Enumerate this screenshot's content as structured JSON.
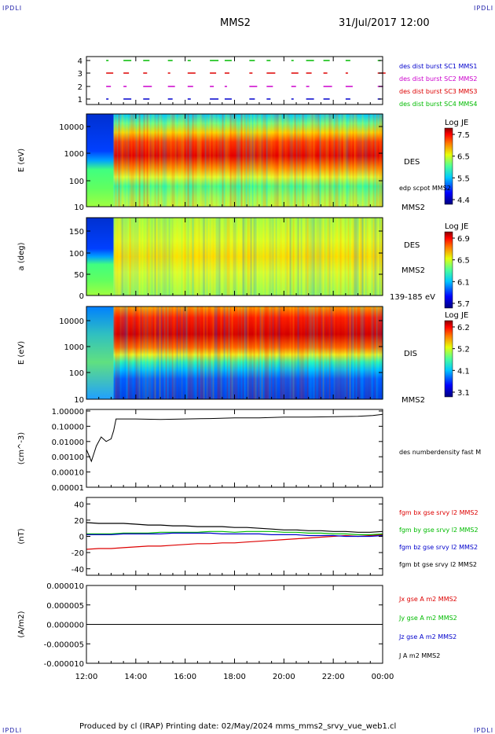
{
  "header": {
    "corner_tl": "IPDLI",
    "corner_tr": "IPDLI",
    "corner_bl": "IPDLI",
    "corner_br": "IPDLI",
    "spacecraft": "MMS2",
    "datetime": "31/Jul/2017 12:00"
  },
  "footer": {
    "text": "Produced by cl (IRAP)   Printing date: 02/May/2024   mms_mms2_srvy_vue_web1.cl"
  },
  "time_axis": {
    "ticks": [
      "12:00",
      "14:00",
      "16:00",
      "18:00",
      "20:00",
      "22:00",
      "00:00"
    ]
  },
  "colors": {
    "mms1": "#0000cc",
    "mms2": "#cc00cc",
    "mms3": "#dd0000",
    "mms4": "#00bb00",
    "bx": "#dd0000",
    "by": "#00bb00",
    "bz": "#0000cc",
    "bt": "#000000"
  },
  "chart_data": [
    {
      "type": "scatter",
      "panel": "burst",
      "yticks": [
        "1",
        "2",
        "3",
        "4"
      ],
      "legend": [
        "des dist burst SC1 MMS1",
        "des dist burst SC2 MMS2",
        "des dist burst SC3 MMS3",
        "des dist burst SC4 MMS4"
      ],
      "burst_hours": [
        12.8,
        13.5,
        14.3,
        15.3,
        16.1,
        17.0,
        17.6,
        18.6,
        19.3,
        20.3,
        20.9,
        21.6,
        22.5,
        23.8
      ]
    },
    {
      "type": "heatmap",
      "panel": "des-energy",
      "ylabel": "E (eV)",
      "yticks": [
        "10000",
        "1000",
        "100",
        "10"
      ],
      "right_labels": [
        "DES",
        "edp scpot MMS2",
        "MMS2"
      ],
      "colorbar": {
        "title": "Log JE",
        "ticks": [
          "7.5",
          "6.5",
          "5.5",
          "4.4"
        ]
      }
    },
    {
      "type": "heatmap",
      "panel": "des-pitch",
      "ylabel": "a (deg)",
      "yticks": [
        "150",
        "100",
        "50",
        "0"
      ],
      "right_labels": [
        "DES",
        "MMS2",
        "139-185 eV"
      ],
      "colorbar": {
        "title": "Log JE",
        "ticks": [
          "6.9",
          "6.5",
          "6.1",
          "5.7"
        ]
      }
    },
    {
      "type": "heatmap",
      "panel": "dis-energy",
      "ylabel": "E (eV)",
      "yticks": [
        "10000",
        "1000",
        "100",
        "10"
      ],
      "right_labels": [
        "DIS",
        "MMS2"
      ],
      "colorbar": {
        "title": "Log JE",
        "ticks": [
          "6.2",
          "5.2",
          "4.1",
          "3.1"
        ]
      }
    },
    {
      "type": "line",
      "panel": "density",
      "ylabel": "(cm^-3)",
      "yticks": [
        "1.00000",
        "0.10000",
        "0.01000",
        "0.00100",
        "0.00010",
        "0.00001"
      ],
      "legend": [
        "des numberdensity fast M"
      ],
      "x_hours": [
        12.0,
        12.2,
        12.4,
        12.6,
        12.8,
        13.0,
        13.1,
        13.2,
        14.0,
        15.0,
        16.0,
        17.0,
        18.0,
        19.0,
        20.0,
        21.0,
        22.0,
        23.0,
        23.6,
        24.0
      ],
      "values": [
        0.003,
        0.0005,
        0.005,
        0.02,
        0.01,
        0.015,
        0.05,
        0.3,
        0.3,
        0.28,
        0.3,
        0.32,
        0.35,
        0.35,
        0.4,
        0.4,
        0.42,
        0.45,
        0.5,
        0.6
      ]
    },
    {
      "type": "line",
      "panel": "magnetic-field",
      "ylabel": "(nT)",
      "yticks": [
        "40",
        "20",
        "0",
        "-20",
        "-40"
      ],
      "ylim": [
        -48,
        48
      ],
      "x_hours": [
        12.0,
        12.5,
        13.0,
        13.5,
        14.0,
        14.5,
        15.0,
        15.5,
        16.0,
        16.5,
        17.0,
        17.5,
        18.0,
        18.5,
        19.0,
        19.5,
        20.0,
        20.5,
        21.0,
        21.5,
        22.0,
        22.5,
        23.0,
        23.5,
        24.0
      ],
      "series": [
        {
          "name": "fgm bx gse srvy l2 MMS2",
          "values": [
            -16,
            -15,
            -15,
            -14,
            -13,
            -12,
            -12,
            -11,
            -10,
            -9,
            -9,
            -8,
            -8,
            -7,
            -6,
            -5,
            -4,
            -3,
            -2,
            -1,
            0,
            1,
            0,
            1,
            2
          ]
        },
        {
          "name": "fgm by gse srvy l2 MMS2",
          "values": [
            3,
            3,
            3,
            4,
            4,
            4,
            5,
            5,
            5,
            5,
            6,
            6,
            5,
            6,
            6,
            6,
            5,
            5,
            4,
            4,
            3,
            3,
            2,
            2,
            3
          ]
        },
        {
          "name": "fgm bz gse srvy l2 MMS2",
          "values": [
            2,
            2,
            2,
            3,
            3,
            3,
            3,
            4,
            4,
            4,
            4,
            3,
            3,
            3,
            3,
            2,
            2,
            2,
            1,
            1,
            1,
            0,
            0,
            0,
            1
          ]
        },
        {
          "name": "fgm bt gse srvy l2 MMS2",
          "values": [
            17,
            16,
            16,
            16,
            15,
            14,
            14,
            13,
            13,
            12,
            12,
            12,
            11,
            11,
            10,
            9,
            8,
            8,
            7,
            7,
            6,
            6,
            5,
            5,
            6
          ]
        }
      ]
    },
    {
      "type": "line",
      "panel": "current-density",
      "ylabel": "(A/m2)",
      "yticks": [
        "0.000010",
        "0.000005",
        "0.000000",
        "-0.000005",
        "-0.000010"
      ],
      "ylim": [
        -1e-05,
        1e-05
      ],
      "legend": [
        "Jx gse A m2 MMS2",
        "Jy gse A m2 MMS2",
        "Jz gse A m2 MMS2",
        "J A m2 MMS2"
      ],
      "x_hours": [
        12.0,
        14.0,
        16.0,
        18.0,
        20.0,
        22.0,
        24.0
      ],
      "values": [
        0,
        0,
        0,
        0,
        0,
        0,
        0
      ]
    }
  ]
}
